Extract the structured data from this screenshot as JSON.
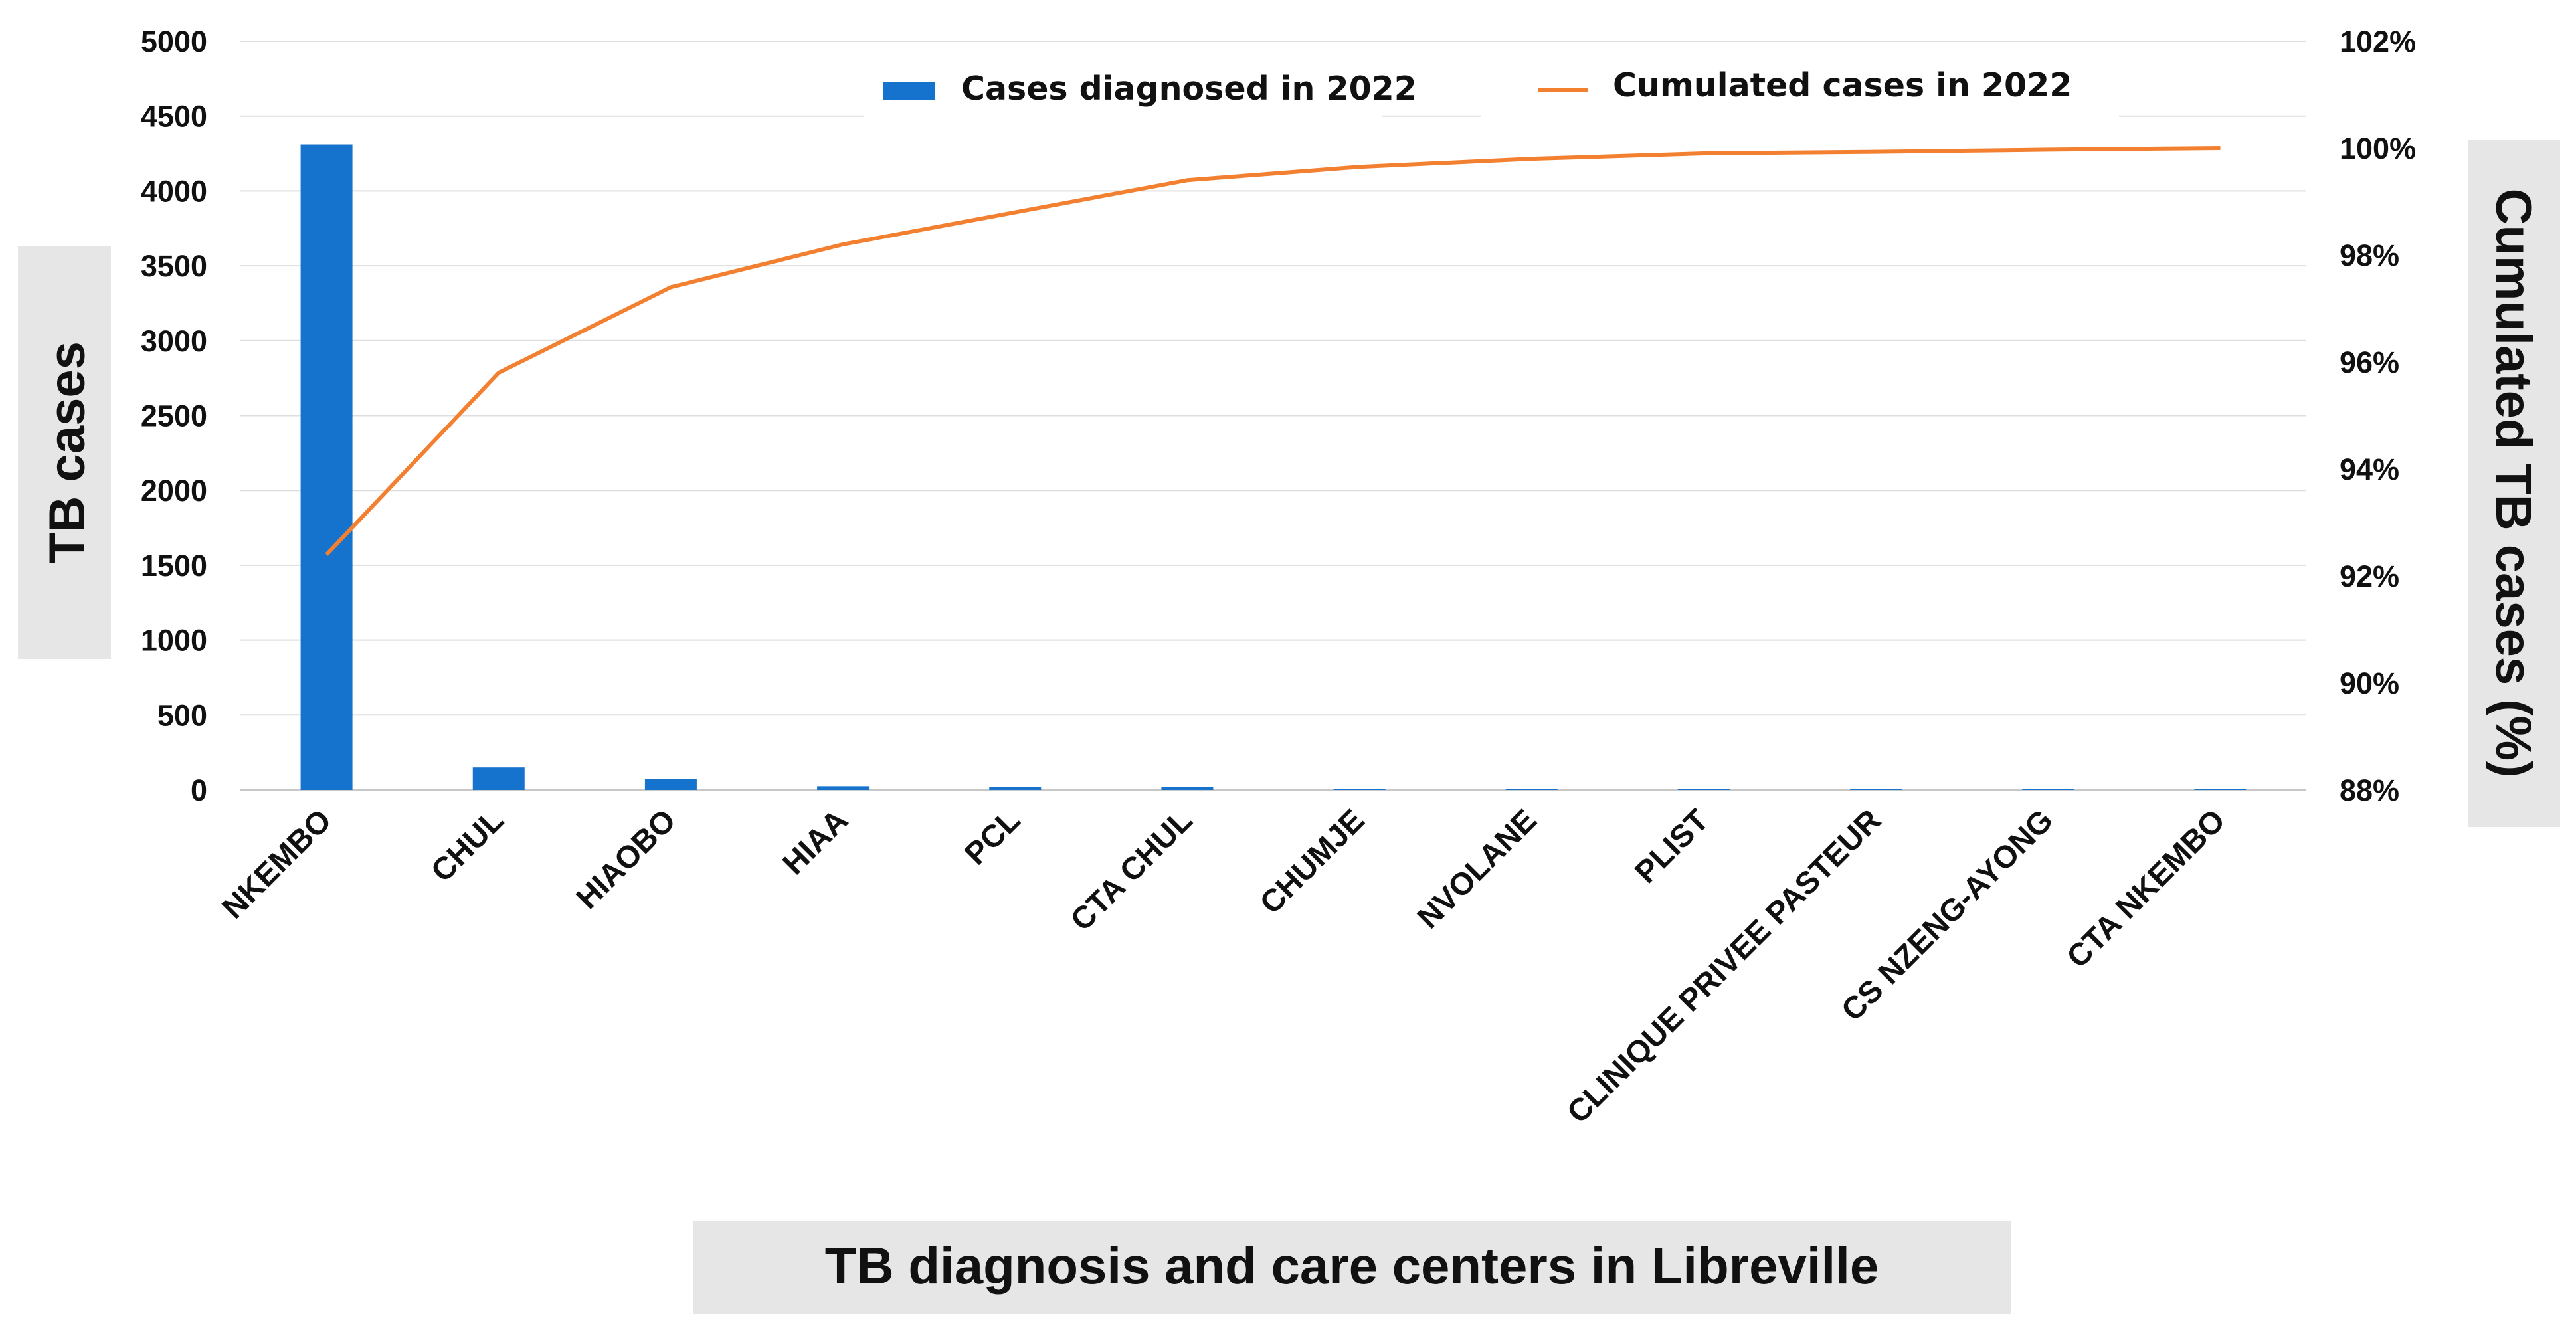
{
  "chart_data": {
    "type": "bar",
    "categories": [
      "NKEMBO",
      "CHUL",
      "HIAOBO",
      "HIAA",
      "PCL",
      "CTA CHUL",
      "CHUMJE",
      "NVOLANE",
      "PLIST",
      "CLINIQUE PRIVEE PASTEUR",
      "CS NZENG-AYONG",
      "CTA NKEMBO"
    ],
    "series": [
      {
        "name": "Cases diagnosed in 2022",
        "axis": "left",
        "kind": "bar",
        "color": "#1572CD",
        "values": [
          4310,
          150,
          75,
          25,
          20,
          20,
          5,
          4,
          3,
          2,
          2,
          1
        ]
      },
      {
        "name": "Cumulated cases in 2022",
        "axis": "right",
        "kind": "line",
        "color": "#F28030",
        "values": [
          92.4,
          95.8,
          97.4,
          98.2,
          98.8,
          99.4,
          99.65,
          99.8,
          99.9,
          99.93,
          99.97,
          100.0
        ]
      }
    ],
    "y_left": {
      "label": "TB cases",
      "min": 0,
      "max": 5000,
      "ticks": [
        "0",
        "500",
        "1000",
        "1500",
        "2000",
        "2500",
        "3000",
        "3500",
        "4000",
        "4500",
        "5000"
      ]
    },
    "y_right": {
      "label": "Cumulated TB cases (%)",
      "min": 88,
      "max": 102,
      "ticks": [
        "88%",
        "90%",
        "92%",
        "94%",
        "96%",
        "98%",
        "100%",
        "102%"
      ]
    },
    "xlabel": "TB diagnosis and care centers in Libreville",
    "legend_position": "top-center",
    "grid": true
  }
}
